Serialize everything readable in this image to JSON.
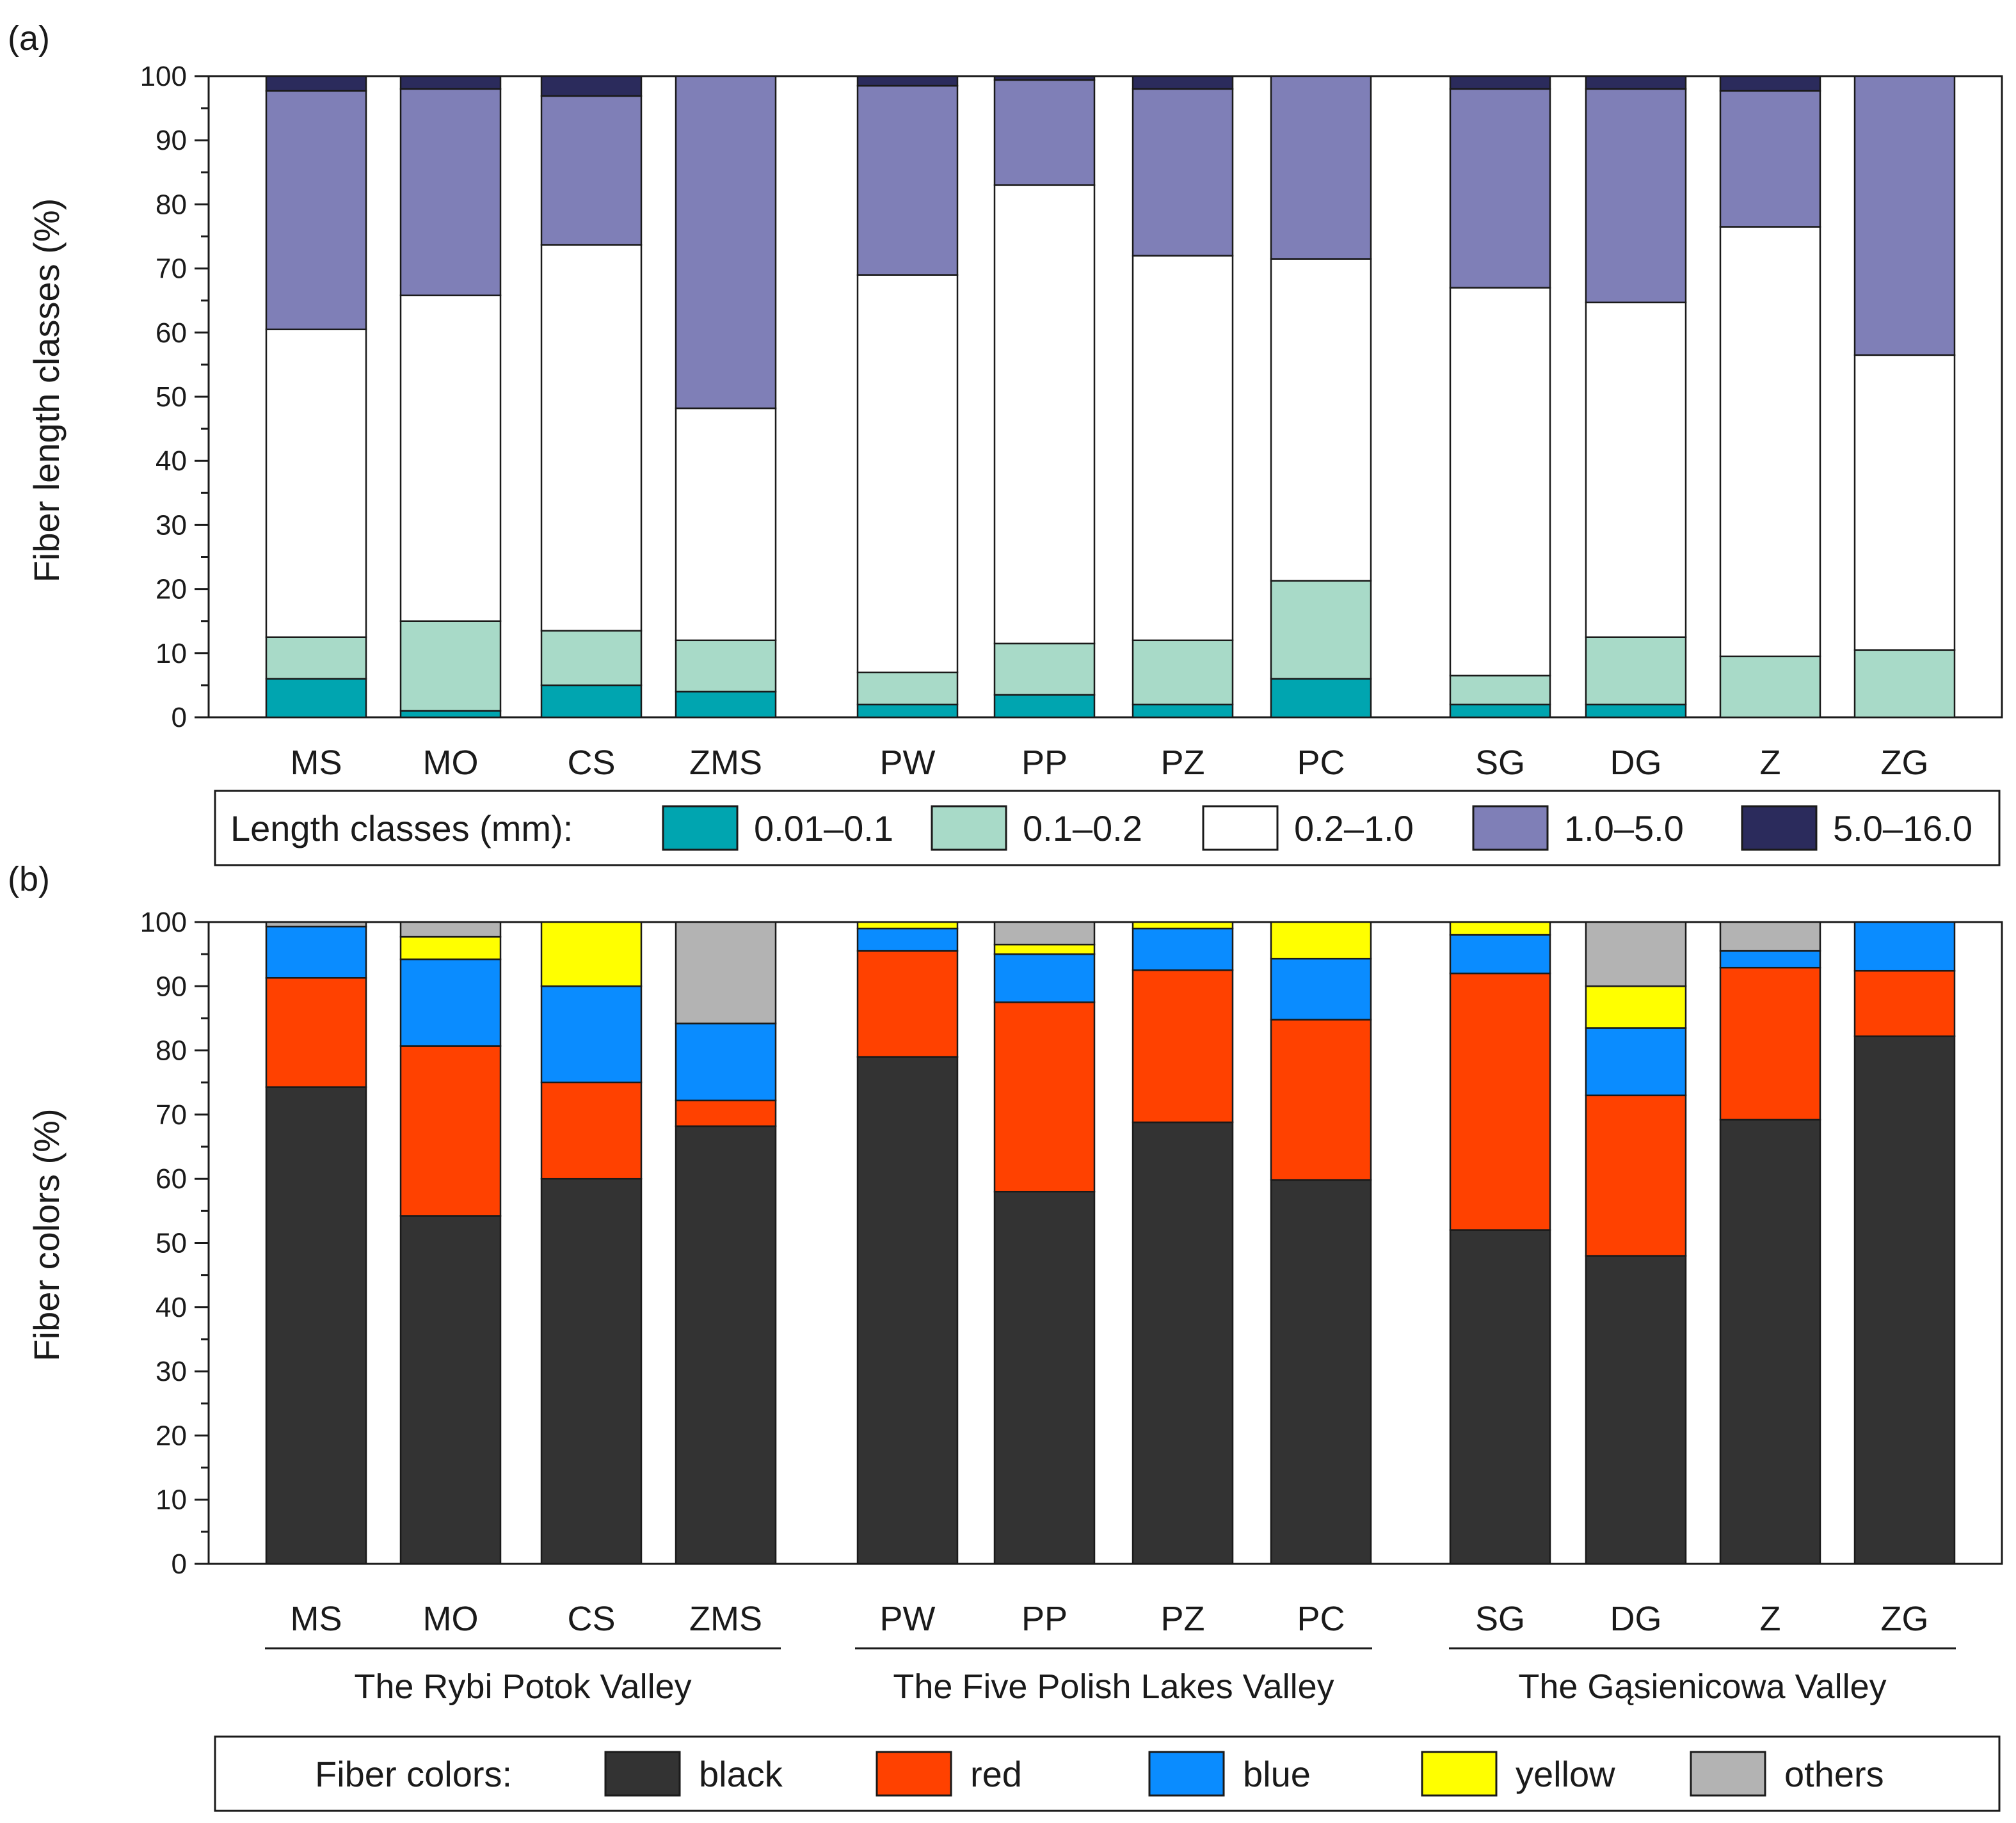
{
  "chart_data": [
    {
      "panel_label": "(a)",
      "type": "bar",
      "stacked": true,
      "ylabel": "Fiber length classes (%)",
      "ylim": [
        0,
        100
      ],
      "yticks": [
        "0",
        "10",
        "20",
        "30",
        "40",
        "50",
        "60",
        "70",
        "80",
        "90",
        "100"
      ],
      "categories": [
        "MS",
        "MO",
        "CS",
        "ZMS",
        "PW",
        "PP",
        "PZ",
        "PC",
        "SG",
        "DG",
        "Z",
        "ZG"
      ],
      "legend_title": "Length classes (mm):",
      "series": [
        {
          "name": "0.01–0.1",
          "color": "#00a5b0",
          "values": [
            6,
            1,
            5,
            4,
            2,
            3.5,
            2,
            6,
            2,
            2,
            0,
            0
          ]
        },
        {
          "name": "0.1–0.2",
          "color": "#a8dac8",
          "values": [
            6.5,
            14,
            8.5,
            8,
            5,
            8,
            10,
            15.3,
            4.5,
            10.5,
            9.5,
            10.5
          ]
        },
        {
          "name": "0.2–1.0",
          "color": "#ffffff",
          "values": [
            48,
            50.8,
            60.2,
            36.2,
            62,
            71.5,
            60,
            50.2,
            60.5,
            52.2,
            67,
            46
          ]
        },
        {
          "name": "1.0–5.0",
          "color": "#7f7fb7",
          "values": [
            37.2,
            32.2,
            23.2,
            51.8,
            29.5,
            16.4,
            26,
            28.5,
            31,
            33.3,
            21.2,
            43.5
          ]
        },
        {
          "name": "5.0–16.0",
          "color": "#2b2b5c",
          "values": [
            2.3,
            2,
            3.1,
            0,
            1.5,
            0.6,
            2,
            0,
            2,
            2,
            2.3,
            0
          ]
        }
      ]
    },
    {
      "panel_label": "(b)",
      "type": "bar",
      "stacked": true,
      "ylabel": "Fiber colors (%)",
      "ylim": [
        0,
        100
      ],
      "yticks": [
        "0",
        "10",
        "20",
        "30",
        "40",
        "50",
        "60",
        "70",
        "80",
        "90",
        "100"
      ],
      "categories": [
        "MS",
        "MO",
        "CS",
        "ZMS",
        "PW",
        "PP",
        "PZ",
        "PC",
        "SG",
        "DG",
        "Z",
        "ZG"
      ],
      "groups": [
        {
          "label": "The Rybi Potok Valley",
          "members": [
            "MS",
            "MO",
            "CS",
            "ZMS"
          ]
        },
        {
          "label": "The Five Polish Lakes Valley",
          "members": [
            "PW",
            "PP",
            "PZ",
            "PC"
          ]
        },
        {
          "label": "The Gąsienicowa Valley",
          "members": [
            "SG",
            "DG",
            "Z",
            "ZG"
          ]
        }
      ],
      "legend_title": "Fiber colors:",
      "series": [
        {
          "name": "black",
          "color": "#333333",
          "values": [
            74.3,
            54.2,
            60,
            68.2,
            79,
            58,
            68.8,
            59.8,
            52,
            48,
            69.2,
            82.2
          ]
        },
        {
          "name": "red",
          "color": "#ff4100",
          "values": [
            17,
            26.5,
            15,
            4,
            16.5,
            29.5,
            23.7,
            25,
            40,
            25,
            23.7,
            10.2
          ]
        },
        {
          "name": "blue",
          "color": "#0a8cff",
          "values": [
            8,
            13.5,
            15,
            12,
            3.5,
            7.5,
            6.5,
            9.5,
            6,
            10.5,
            2.6,
            7.6
          ]
        },
        {
          "name": "yellow",
          "color": "#ffff00",
          "values": [
            0,
            3.5,
            10,
            0,
            1,
            1.5,
            1,
            5.7,
            2,
            6.5,
            0,
            0
          ]
        },
        {
          "name": "others",
          "color": "#b3b3b3",
          "values": [
            0.7,
            2.3,
            0,
            15.8,
            0,
            3.5,
            0,
            0,
            0,
            10,
            4.5,
            0
          ]
        }
      ]
    }
  ]
}
